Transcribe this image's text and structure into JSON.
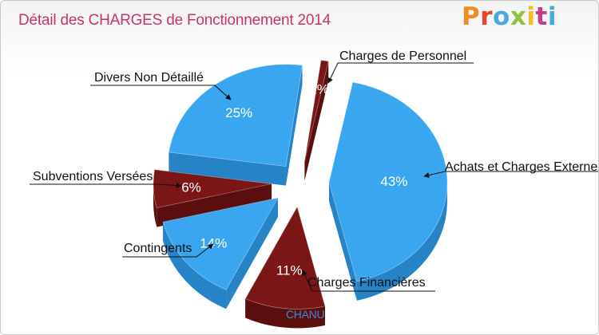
{
  "title": "Détail des CHARGES de Fonctionnement 2014",
  "logo": {
    "text": "Proxiti",
    "colors": [
      "#f28c1e",
      "#e8432b",
      "#49a9de",
      "#8fc23e",
      "#f2bf1e",
      "#c83b8a",
      "#49a9de"
    ]
  },
  "footer_label": "CHANU",
  "colors": {
    "blue": "#3aa6ef",
    "blue_side": "#2683c6",
    "red": "#7a1616",
    "red_side": "#5a0e0e",
    "title": "#c8336a"
  },
  "chart_data": {
    "type": "pie",
    "title": "Détail des CHARGES de Fonctionnement 2014",
    "slices": [
      {
        "label": "Charges de Personnel",
        "value": 1,
        "pct_label": "1%",
        "color": "red"
      },
      {
        "label": "Achats et Charges Externes",
        "value": 43,
        "pct_label": "43%",
        "color": "blue"
      },
      {
        "label": "Charges Financières",
        "value": 11,
        "pct_label": "11%",
        "color": "red"
      },
      {
        "label": "Contingents",
        "value": 14,
        "pct_label": "14%",
        "color": "blue"
      },
      {
        "label": "Subventions Versées",
        "value": 6,
        "pct_label": "6%",
        "color": "red"
      },
      {
        "label": "Divers Non Détaillé",
        "value": 25,
        "pct_label": "25%",
        "color": "blue"
      }
    ]
  }
}
